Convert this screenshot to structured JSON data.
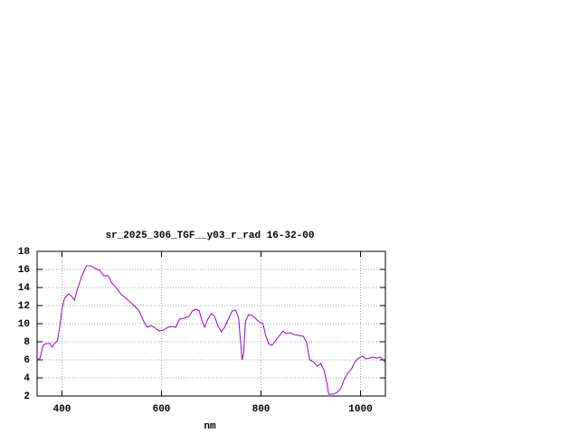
{
  "chart_data": {
    "type": "line",
    "title": "sr_2025_306_TGF__y03_r_rad 16-32-00",
    "xlabel": "nm",
    "x": [
      351,
      356,
      362,
      367,
      376,
      380,
      385,
      391,
      396,
      400,
      405,
      413,
      420,
      425,
      431,
      440,
      449,
      458,
      467,
      476,
      484,
      493,
      500,
      509,
      518,
      531,
      545,
      555,
      564,
      571,
      578,
      585,
      595,
      604,
      613,
      622,
      629,
      636,
      645,
      655,
      662,
      669,
      676,
      682,
      687,
      693,
      700,
      707,
      713,
      720,
      727,
      735,
      742,
      749,
      755,
      758,
      762,
      765,
      769,
      775,
      782,
      789,
      796,
      804,
      809,
      815,
      822,
      829,
      836,
      844,
      851,
      858,
      867,
      876,
      885,
      891,
      898,
      905,
      913,
      920,
      927,
      933,
      936,
      945,
      953,
      960,
      967,
      975,
      982,
      989,
      996,
      1004,
      1011,
      1018,
      1025,
      1033,
      1040,
      1045,
      1050
    ],
    "series": [
      {
        "color": "#9400d3",
        "values": [
          6.0,
          6.2,
          7.6,
          7.8,
          7.8,
          7.4,
          7.8,
          8.1,
          9.8,
          11.6,
          12.8,
          13.3,
          13.0,
          12.6,
          13.8,
          15.3,
          16.4,
          16.4,
          16.1,
          15.9,
          15.3,
          15.3,
          14.5,
          14.0,
          13.3,
          12.7,
          12.0,
          11.4,
          10.3,
          9.6,
          9.8,
          9.6,
          9.2,
          9.3,
          9.6,
          9.7,
          9.6,
          10.5,
          10.6,
          10.8,
          11.4,
          11.6,
          11.4,
          10.2,
          9.6,
          10.5,
          11.1,
          10.8,
          9.8,
          9.1,
          9.6,
          10.6,
          11.4,
          11.5,
          10.6,
          8.6,
          6.0,
          6.8,
          10.3,
          11.0,
          10.9,
          10.6,
          10.2,
          10.0,
          8.8,
          7.8,
          7.6,
          8.1,
          8.6,
          9.2,
          8.9,
          9.0,
          8.8,
          8.7,
          8.6,
          8.0,
          6.0,
          5.8,
          5.3,
          5.6,
          4.8,
          3.3,
          2.2,
          2.2,
          2.4,
          2.8,
          3.8,
          4.6,
          5.0,
          5.8,
          6.2,
          6.4,
          6.1,
          6.2,
          6.3,
          6.2,
          6.3,
          6.0,
          5.7
        ]
      }
    ],
    "xlim": [
      350,
      1050
    ],
    "xticks": [
      400,
      600,
      800,
      1000
    ],
    "ylim": [
      2,
      18
    ],
    "yticks": [
      2,
      4,
      6,
      8,
      10,
      12,
      14,
      16,
      18
    ],
    "grid": true
  }
}
